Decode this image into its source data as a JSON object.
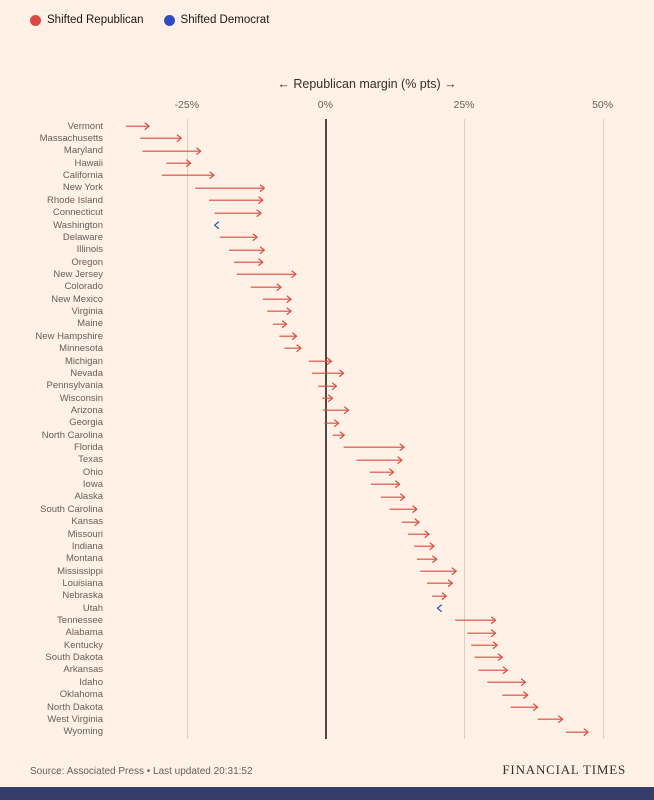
{
  "legend": [
    {
      "label": "Shifted Republican",
      "color": "#db4a42"
    },
    {
      "label": "Shifted Democrat",
      "color": "#2b4fc2"
    }
  ],
  "axis": {
    "title": "← Republican margin (% pts) →",
    "ticks": [
      {
        "value": -25,
        "label": "-25%"
      },
      {
        "value": 0,
        "label": "0%"
      },
      {
        "value": 25,
        "label": "25%"
      },
      {
        "value": 50,
        "label": "50%"
      }
    ]
  },
  "colors": {
    "background": "#fff1e5",
    "republican": "#db4a42",
    "democrat": "#2b4fc2",
    "gridline": "#ddd0c2",
    "zero_line": "#4d4845",
    "footer_bar": "#353d6b"
  },
  "chart_data": {
    "type": "arrow",
    "title": "Shift in Republican margin by state",
    "xlabel": "Republican margin (% pts)",
    "xlim": [
      -38.5,
      53.5
    ],
    "grid": "vertical ticks at -25, 0, 25, 50; dark zero line",
    "legend_position": "top-left",
    "states": [
      {
        "name": "Vermont",
        "from": -36.0,
        "to": -31.8,
        "shift": "republican"
      },
      {
        "name": "Massachusetts",
        "from": -33.4,
        "to": -26.0,
        "shift": "republican"
      },
      {
        "name": "Maryland",
        "from": -33.0,
        "to": -22.5,
        "shift": "republican"
      },
      {
        "name": "Hawaii",
        "from": -28.7,
        "to": -24.3,
        "shift": "republican"
      },
      {
        "name": "California",
        "from": -29.5,
        "to": -20.1,
        "shift": "republican"
      },
      {
        "name": "New York",
        "from": -23.5,
        "to": -11.0,
        "shift": "republican"
      },
      {
        "name": "Rhode Island",
        "from": -21.0,
        "to": -11.3,
        "shift": "republican"
      },
      {
        "name": "Connecticut",
        "from": -20.0,
        "to": -11.6,
        "shift": "republican"
      },
      {
        "name": "Washington",
        "from": -19.0,
        "to": -20.0,
        "shift": "democrat"
      },
      {
        "name": "Delaware",
        "from": -19.0,
        "to": -12.3,
        "shift": "republican"
      },
      {
        "name": "Illinois",
        "from": -17.4,
        "to": -11.0,
        "shift": "republican"
      },
      {
        "name": "Oregon",
        "from": -16.5,
        "to": -11.3,
        "shift": "republican"
      },
      {
        "name": "New Jersey",
        "from": -16.0,
        "to": -5.3,
        "shift": "republican"
      },
      {
        "name": "Colorado",
        "from": -13.5,
        "to": -8.0,
        "shift": "republican"
      },
      {
        "name": "New Mexico",
        "from": -11.3,
        "to": -6.2,
        "shift": "republican"
      },
      {
        "name": "Virginia",
        "from": -10.5,
        "to": -6.2,
        "shift": "republican"
      },
      {
        "name": "Maine",
        "from": -9.5,
        "to": -7.0,
        "shift": "republican"
      },
      {
        "name": "New Hampshire",
        "from": -8.3,
        "to": -5.2,
        "shift": "republican"
      },
      {
        "name": "Minnesota",
        "from": -7.4,
        "to": -4.4,
        "shift": "republican"
      },
      {
        "name": "Michigan",
        "from": -3.0,
        "to": 1.1,
        "shift": "republican"
      },
      {
        "name": "Nevada",
        "from": -2.4,
        "to": 3.3,
        "shift": "republican"
      },
      {
        "name": "Pennsylvania",
        "from": -1.3,
        "to": 2.0,
        "shift": "republican"
      },
      {
        "name": "Wisconsin",
        "from": -0.6,
        "to": 1.3,
        "shift": "republican"
      },
      {
        "name": "Arizona",
        "from": -0.4,
        "to": 4.2,
        "shift": "republican"
      },
      {
        "name": "Georgia",
        "from": -0.2,
        "to": 2.4,
        "shift": "republican"
      },
      {
        "name": "North Carolina",
        "from": 1.3,
        "to": 3.4,
        "shift": "republican"
      },
      {
        "name": "Florida",
        "from": 3.3,
        "to": 14.2,
        "shift": "republican"
      },
      {
        "name": "Texas",
        "from": 5.6,
        "to": 13.8,
        "shift": "republican"
      },
      {
        "name": "Ohio",
        "from": 8.0,
        "to": 12.3,
        "shift": "republican"
      },
      {
        "name": "Iowa",
        "from": 8.2,
        "to": 13.4,
        "shift": "republican"
      },
      {
        "name": "Alaska",
        "from": 10.0,
        "to": 14.3,
        "shift": "republican"
      },
      {
        "name": "South Carolina",
        "from": 11.6,
        "to": 16.5,
        "shift": "republican"
      },
      {
        "name": "Kansas",
        "from": 13.8,
        "to": 16.9,
        "shift": "republican"
      },
      {
        "name": "Missouri",
        "from": 14.9,
        "to": 18.7,
        "shift": "republican"
      },
      {
        "name": "Indiana",
        "from": 16.0,
        "to": 19.6,
        "shift": "republican"
      },
      {
        "name": "Montana",
        "from": 16.5,
        "to": 20.1,
        "shift": "republican"
      },
      {
        "name": "Mississippi",
        "from": 17.1,
        "to": 23.6,
        "shift": "republican"
      },
      {
        "name": "Louisiana",
        "from": 18.3,
        "to": 22.9,
        "shift": "republican"
      },
      {
        "name": "Nebraska",
        "from": 19.2,
        "to": 21.8,
        "shift": "republican"
      },
      {
        "name": "Utah",
        "from": 21.0,
        "to": 20.2,
        "shift": "democrat"
      },
      {
        "name": "Tennessee",
        "from": 23.4,
        "to": 30.7,
        "shift": "republican"
      },
      {
        "name": "Alabama",
        "from": 25.6,
        "to": 30.7,
        "shift": "republican"
      },
      {
        "name": "Kentucky",
        "from": 26.3,
        "to": 31.0,
        "shift": "republican"
      },
      {
        "name": "South Dakota",
        "from": 26.9,
        "to": 31.9,
        "shift": "republican"
      },
      {
        "name": "Arkansas",
        "from": 27.6,
        "to": 32.8,
        "shift": "republican"
      },
      {
        "name": "Idaho",
        "from": 29.2,
        "to": 36.1,
        "shift": "republican"
      },
      {
        "name": "Oklahoma",
        "from": 31.9,
        "to": 36.5,
        "shift": "republican"
      },
      {
        "name": "North Dakota",
        "from": 33.4,
        "to": 38.3,
        "shift": "republican"
      },
      {
        "name": "West Virginia",
        "from": 38.3,
        "to": 42.8,
        "shift": "republican"
      },
      {
        "name": "Wyoming",
        "from": 43.4,
        "to": 47.4,
        "shift": "republican"
      }
    ]
  },
  "footer": {
    "source": "Source: Associated Press • Last updated 20:31:52",
    "brand": "FINANCIAL TIMES"
  }
}
